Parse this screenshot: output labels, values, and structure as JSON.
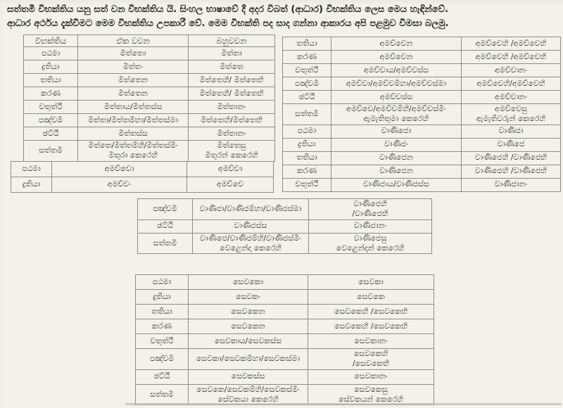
{
  "colors": {
    "paper_background": "#f3f1ec",
    "ink": "#2d2c28",
    "table_border": "#8f8c83"
  },
  "intro": {
    "line1": "සත්තමී විභක්තිය යනු සත් වන විභක්තිය යි. සිංහල භාෂාවේ දී අදර විබත් (ආධාර) විභක්තිය ලෙස මෙය හැඳින්වේ.",
    "line2": "ආධාර අර්ථය දැක්වීමට මෙම විභක්තිය උපකාරී වේ. මෙම විභක්ති පද සාද ගන්නා ආකාරය අපි පළමුව විමසා බලමු."
  },
  "tables": {
    "mitta": {
      "headers": [
        "විභක්තිය",
        "ඒක වචන",
        "බහුවචන"
      ],
      "rows": [
        [
          "පඨමා",
          "මිත්තො",
          "මිත්තා"
        ],
        [
          "දුතියා",
          "මිත්තං",
          "මිත්තෙ"
        ],
        [
          "තතියා",
          "මිත්තෙන",
          "මිත්තෙහි/ මිත්තෙභි"
        ],
        [
          "කරණ",
          "මිත්තෙන",
          "මිත්තෙහි/ මිත්තෙභි"
        ],
        [
          "චතුත්ථී",
          "මිත්තාය/මිත්තස්ස",
          "මිත්තානං"
        ],
        [
          "පඤ්චමී",
          "මිත්තා/මිත්තම්හා/මිත්තස්මා",
          "මිත්තෙහි/මිත්තෙභි"
        ],
        [
          "ඡට්ඨී",
          "මිත්තස්ස",
          "මිත්තානං"
        ],
        [
          "සත්තමී",
          "මිත්තෙ/මිත්තම්හි/මිත්තස්මිං\nමිතුරා කෙරෙහි",
          "මිත්තෙසු\nමිතුරන් කෙරෙහි"
        ]
      ]
    },
    "amacca_nom_acc": {
      "rows": [
        [
          "පඨමා",
          "අමච්චො",
          "අමච්චා"
        ],
        [
          "දුතියා",
          "අමච්චං",
          "අමච්චෙ"
        ]
      ]
    },
    "amacca_rest": {
      "rows": [
        [
          "තතියා",
          "අමච්චෙන",
          "අමච්චෙහි /අමච්චෙභි"
        ],
        [
          "කරණ",
          "අමච්චෙන",
          "අමච්චෙහි /අමච්චෙභි"
        ],
        [
          "චතුත්ථී",
          "අමච්චාය/අමච්චස්ස",
          "අමච්චානං"
        ],
        [
          "පඤ්චමී",
          "අමච්චා/අමච්චම්හා/අමච්චස්මා",
          "අමච්චෙහි/අමච්චෙභි"
        ],
        [
          "ඡට්ඨී",
          "අමච්චස්ස",
          "අමච්චානං"
        ],
        [
          "සත්තමී",
          "අමච්චෙ/අමච්චම්හි/අමච්චස්මිං\nඇමැතිතුමා කෙරෙහි",
          "අමච්චෙසු\nඇමැතිවරුන් කෙරෙහි"
        ],
        [
          "පඨමා",
          "වාණිජො",
          "වාණිජා"
        ],
        [
          "දුතියා",
          "වාණිජං",
          "වාණිජෙ"
        ],
        [
          "තතියා",
          "වාණිජෙන",
          "වාණිජෙහි /වාණිජෙභි"
        ],
        [
          "කරණ",
          "වාණිජෙන",
          "වාණිජෙහි /වාණිජෙභි"
        ],
        [
          "චතුත්ථී",
          "වාණිජාය/වාණිජස්ස",
          "වාණිජානං"
        ]
      ]
    },
    "vanija_rest": {
      "rows": [
        [
          "පඤ්චමී",
          "වාණිජා/වාණිජම්හා/වාණිජස්මා",
          "වාණිජෙහි\n/වාණිජෙභි"
        ],
        [
          "ඡට්ඨී",
          "වාණිජස්ස",
          "වාණිජානං"
        ],
        [
          "සත්තමී",
          "වාණිජෙ/වාණිජම්හි/වාණිජස්මිං\nවෙළෙන්දා කෙරෙහි",
          "වාණිජෙසු\nවෙළෙන්දන් කෙරෙහි"
        ]
      ]
    },
    "sevaka": {
      "rows": [
        [
          "පඨමා",
          "සෙවකො",
          "සෙවකා"
        ],
        [
          "දුතියා",
          "සෙවකං",
          "සෙවකෙ"
        ],
        [
          "තතියා",
          "සෙවකෙන",
          "සෙවකෙහි /සෙවකෙභි"
        ],
        [
          "කරණ",
          "සෙවකෙන",
          "සෙවකෙහි /සෙවකෙභි"
        ],
        [
          "චතුත්ථී",
          "සෙවකාය/සෙවකස්ස",
          "සෙවකානං"
        ],
        [
          "පඤ්චමී",
          "සෙවකා/සෙවකම්හා/සෙවකස්මා",
          "සෙවකෙහි\n/සෙවකෙභි"
        ],
        [
          "ඡට්ඨී",
          "සෙවකස්ස",
          "සෙවකානං"
        ],
        [
          "සත්තමී",
          "සෙවකෙ/සෙවකම්හි/සෙවකස්මිං\nසේවකයා කෙරෙහි",
          "සෙවකෙසු\nසේවකයන් කෙරෙහි"
        ]
      ]
    }
  }
}
